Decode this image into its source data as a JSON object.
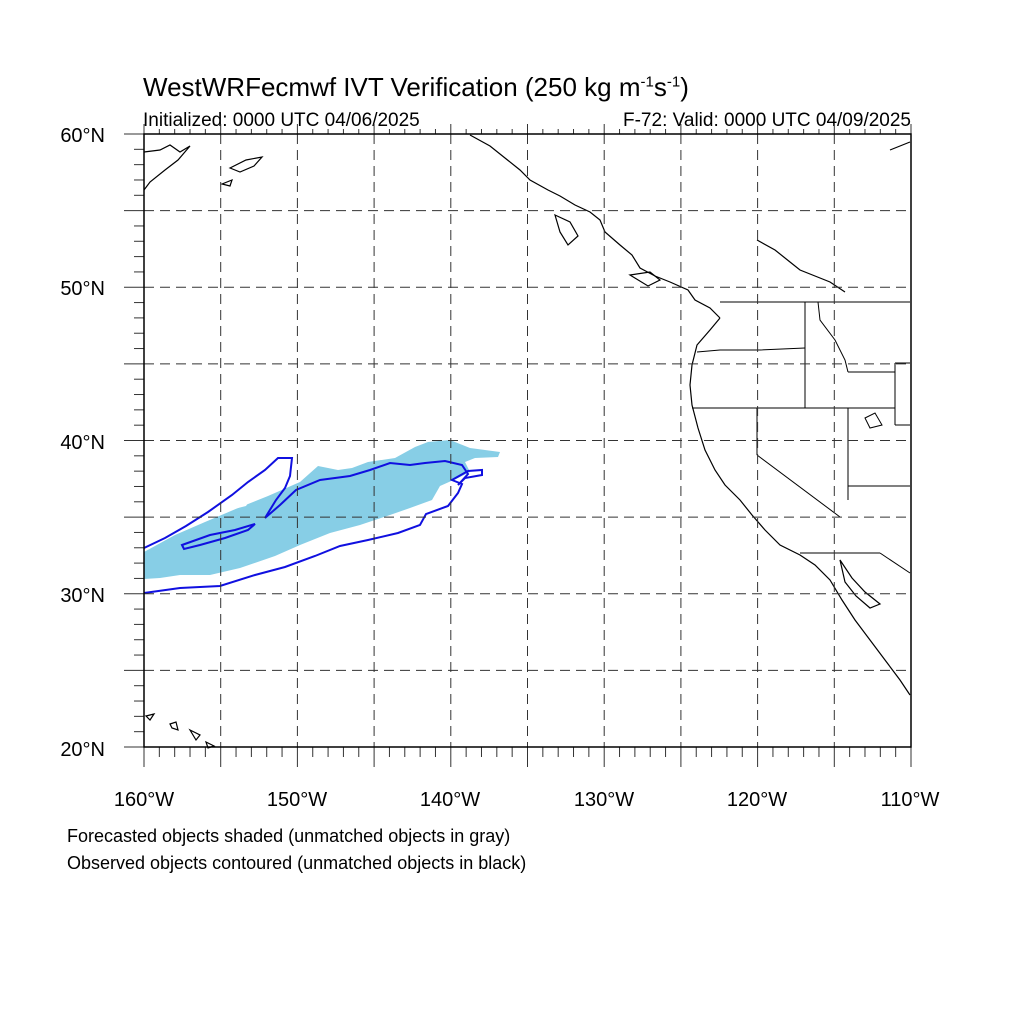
{
  "title": {
    "main": "WestWRFecmwf IVT Verification (250 kg m",
    "sup1": "-1",
    "mid": "s",
    "sup2": "-1",
    "end": ")"
  },
  "subtitle": {
    "left": "Initialized: 0000 UTC 04/06/2025",
    "right": "F-72: Valid: 0000 UTC 04/09/2025"
  },
  "map": {
    "lon_range": [
      -160,
      -110
    ],
    "lat_range": [
      20,
      60
    ],
    "lat_labels": [
      "20°N",
      "30°N",
      "40°N",
      "50°N",
      "60°N"
    ],
    "lon_labels": [
      "160°W",
      "150°W",
      "140°W",
      "130°W",
      "120°W",
      "110°W"
    ],
    "gridlines": "dashed",
    "forecast_color": "#87CEE6",
    "observed_color": "#1010E0",
    "coast_color": "#000000"
  },
  "notes": [
    "Forecasted objects shaded (unmatched objects in gray)",
    "Observed objects contoured (unmatched objects in black)"
  ]
}
